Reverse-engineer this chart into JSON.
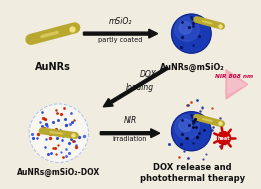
{
  "bg_color": "#f0ece0",
  "gold_color": "#b8a830",
  "gold_highlight": "#e0d060",
  "gold_tip": "#f0e080",
  "blue_color": "#1a3ab5",
  "blue_light": "#4060d0",
  "blue_lighter": "#6080e8",
  "blue_dark": "#0d1f6e",
  "blue_dot": "#0a1560",
  "pink_color": "#f4a0b0",
  "pink_light": "#f8c8d4",
  "red_color": "#cc0000",
  "red_dot": "#cc3300",
  "arrow_color": "#111111",
  "text_color": "#111111",
  "shell_color": "#d8e4f8",
  "shell_border": "#a0b8e0",
  "labels": {
    "top_left": "AuNRs",
    "top_right": "AuNRs@mSiO₂",
    "bottom_left": "AuNRs@mSiO₂-DOX",
    "bottom_right": "DOX release and\nphotothermal therapy"
  },
  "arrow_labels": {
    "top": "mSiO₂",
    "top_sub": "partly coated",
    "middle_top": "DOX",
    "middle_bot": "loading",
    "bottom": "NIR",
    "bottom_sub": "irradiation",
    "nir": "NIR 808 nm"
  }
}
